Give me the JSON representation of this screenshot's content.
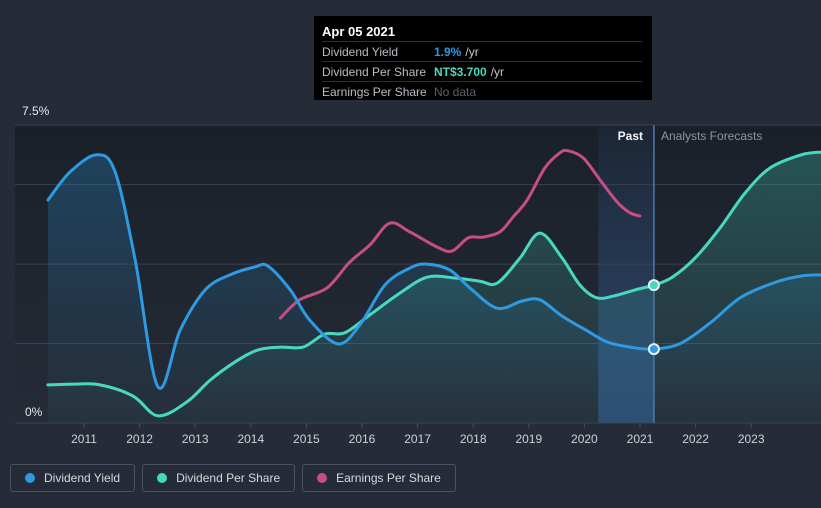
{
  "tooltip": {
    "date": "Apr 05 2021",
    "rows": [
      {
        "label": "Dividend Yield",
        "value": "1.9%",
        "suffix": "/yr",
        "value_color": "#2d9ae2",
        "muted": false
      },
      {
        "label": "Dividend Per Share",
        "value": "NT$3.700",
        "suffix": "/yr",
        "value_color": "#48d8c0",
        "muted": false
      },
      {
        "label": "Earnings Per Share",
        "value": "No data",
        "suffix": "",
        "value_color": "#5b616b",
        "muted": true
      }
    ]
  },
  "annotations": {
    "past_label": "Past",
    "forecast_label": "Analysts Forecasts"
  },
  "axis": {
    "y_top_label": "7.5%",
    "y_bottom_label": "0%",
    "years": [
      2011,
      2012,
      2013,
      2014,
      2015,
      2016,
      2017,
      2018,
      2019,
      2020,
      2021,
      2022,
      2023
    ]
  },
  "legend": [
    {
      "label": "Dividend Yield",
      "color": "#2d9ae2"
    },
    {
      "label": "Dividend Per Share",
      "color": "#48d8c0"
    },
    {
      "label": "Earnings Per Share",
      "color": "#c84d85"
    }
  ],
  "colors": {
    "background": "#262c37",
    "plot_top": "#192029",
    "gridline": "#3a414d",
    "tick": "#454d5b",
    "today_line": "#4e78ab",
    "past_band": "#3a76c6",
    "marker_ring": "#e9eef5"
  },
  "chart_data": {
    "type": "line",
    "title": "",
    "xlabel": "",
    "ylabel": "Dividend Yield",
    "y_units": "%",
    "ylim": [
      0,
      7.5
    ],
    "x_range": [
      2010.35,
      2024.28
    ],
    "gridlines_pct": [
      0,
      2,
      4,
      6,
      7.5
    ],
    "legend_position": "bottom-left",
    "today_x": 2021.25,
    "past_band": [
      2020.25,
      2021.25
    ],
    "series": [
      {
        "name": "Earnings Per Share",
        "color": "#c84d85",
        "has_area": false,
        "today_value": null,
        "points": [
          [
            2014.53,
            2.64
          ],
          [
            2014.88,
            3.1
          ],
          [
            2015.37,
            3.4
          ],
          [
            2015.78,
            4.05
          ],
          [
            2016.14,
            4.48
          ],
          [
            2016.5,
            5.03
          ],
          [
            2016.86,
            4.81
          ],
          [
            2017.35,
            4.43
          ],
          [
            2017.62,
            4.33
          ],
          [
            2017.91,
            4.66
          ],
          [
            2018.18,
            4.68
          ],
          [
            2018.48,
            4.81
          ],
          [
            2018.72,
            5.19
          ],
          [
            2018.97,
            5.61
          ],
          [
            2019.29,
            6.42
          ],
          [
            2019.56,
            6.8
          ],
          [
            2019.71,
            6.85
          ],
          [
            2019.98,
            6.67
          ],
          [
            2020.28,
            6.12
          ],
          [
            2020.59,
            5.56
          ],
          [
            2020.82,
            5.29
          ],
          [
            2021.0,
            5.21
          ]
        ]
      },
      {
        "name": "Dividend Per Share",
        "color": "#48d8c0",
        "has_area": true,
        "today_value": 3.47,
        "points": [
          [
            2010.35,
            0.96
          ],
          [
            2010.84,
            0.98
          ],
          [
            2011.29,
            0.96
          ],
          [
            2011.88,
            0.68
          ],
          [
            2012.33,
            0.18
          ],
          [
            2012.85,
            0.53
          ],
          [
            2013.27,
            1.08
          ],
          [
            2013.72,
            1.54
          ],
          [
            2014.13,
            1.84
          ],
          [
            2014.54,
            1.91
          ],
          [
            2014.94,
            1.91
          ],
          [
            2015.33,
            2.24
          ],
          [
            2015.69,
            2.27
          ],
          [
            2016.14,
            2.72
          ],
          [
            2016.68,
            3.27
          ],
          [
            2017.17,
            3.67
          ],
          [
            2017.67,
            3.65
          ],
          [
            2018.12,
            3.57
          ],
          [
            2018.43,
            3.52
          ],
          [
            2018.84,
            4.15
          ],
          [
            2019.2,
            4.78
          ],
          [
            2019.6,
            4.15
          ],
          [
            2019.92,
            3.47
          ],
          [
            2020.23,
            3.15
          ],
          [
            2020.59,
            3.22
          ],
          [
            2020.91,
            3.35
          ],
          [
            2021.25,
            3.47
          ],
          [
            2021.58,
            3.67
          ],
          [
            2021.99,
            4.15
          ],
          [
            2022.44,
            4.91
          ],
          [
            2022.89,
            5.79
          ],
          [
            2023.34,
            6.42
          ],
          [
            2023.9,
            6.75
          ],
          [
            2024.28,
            6.82
          ]
        ]
      },
      {
        "name": "Dividend Yield",
        "color": "#2d9ae2",
        "has_area": true,
        "today_value": 1.86,
        "points": [
          [
            2010.35,
            5.61
          ],
          [
            2010.75,
            6.32
          ],
          [
            2011.23,
            6.75
          ],
          [
            2011.56,
            6.32
          ],
          [
            2011.92,
            4.1
          ],
          [
            2012.33,
            0.91
          ],
          [
            2012.73,
            2.34
          ],
          [
            2013.18,
            3.35
          ],
          [
            2013.63,
            3.73
          ],
          [
            2014.08,
            3.93
          ],
          [
            2014.31,
            3.95
          ],
          [
            2014.71,
            3.35
          ],
          [
            2015.06,
            2.59
          ],
          [
            2015.57,
            1.99
          ],
          [
            2015.96,
            2.47
          ],
          [
            2016.41,
            3.47
          ],
          [
            2016.86,
            3.9
          ],
          [
            2017.17,
            4.0
          ],
          [
            2017.58,
            3.85
          ],
          [
            2017.94,
            3.4
          ],
          [
            2018.43,
            2.89
          ],
          [
            2018.88,
            3.07
          ],
          [
            2019.2,
            3.1
          ],
          [
            2019.6,
            2.69
          ],
          [
            2020.05,
            2.32
          ],
          [
            2020.41,
            2.04
          ],
          [
            2020.82,
            1.91
          ],
          [
            2021.25,
            1.86
          ],
          [
            2021.74,
            2.01
          ],
          [
            2022.28,
            2.54
          ],
          [
            2022.82,
            3.17
          ],
          [
            2023.45,
            3.55
          ],
          [
            2023.9,
            3.7
          ],
          [
            2024.28,
            3.73
          ]
        ]
      }
    ]
  }
}
